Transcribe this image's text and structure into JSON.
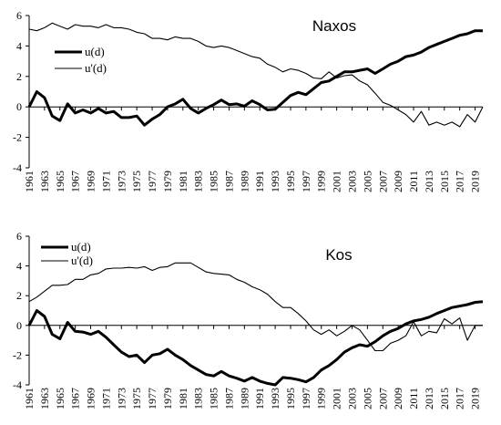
{
  "chart_data": [
    {
      "type": "line",
      "title": "Naxos",
      "xlabel": "",
      "ylabel": "",
      "ylim": [
        -4,
        6
      ],
      "yticks": [
        6,
        4,
        2,
        0,
        -2,
        -4
      ],
      "xlim": [
        1961,
        2020
      ],
      "xticks": [
        1961,
        1963,
        1965,
        1967,
        1969,
        1971,
        1973,
        1975,
        1977,
        1979,
        1981,
        1983,
        1985,
        1987,
        1989,
        1991,
        1993,
        1995,
        1997,
        1999,
        2001,
        2003,
        2005,
        2007,
        2009,
        2011,
        2013,
        2015,
        2017,
        2019
      ],
      "legend_position": "top-left",
      "grid": false,
      "x": [
        1961,
        1962,
        1963,
        1964,
        1965,
        1966,
        1967,
        1968,
        1969,
        1970,
        1971,
        1972,
        1973,
        1974,
        1975,
        1976,
        1977,
        1978,
        1979,
        1980,
        1981,
        1982,
        1983,
        1984,
        1985,
        1986,
        1987,
        1988,
        1989,
        1990,
        1991,
        1992,
        1993,
        1994,
        1995,
        1996,
        1997,
        1998,
        1999,
        2000,
        2001,
        2002,
        2003,
        2004,
        2005,
        2006,
        2007,
        2008,
        2009,
        2010,
        2011,
        2012,
        2013,
        2014,
        2015,
        2016,
        2017,
        2018,
        2019,
        2020
      ],
      "series": [
        {
          "name": "u(d)",
          "style": "thick",
          "values": [
            0.0,
            1.0,
            0.6,
            -0.6,
            -0.9,
            0.2,
            -0.4,
            -0.2,
            -0.4,
            -0.1,
            -0.4,
            -0.3,
            -0.7,
            -0.7,
            -0.6,
            -1.2,
            -0.8,
            -0.5,
            0.0,
            0.2,
            0.5,
            -0.1,
            -0.4,
            -0.1,
            0.15,
            0.45,
            0.15,
            0.2,
            0.05,
            0.4,
            0.15,
            -0.2,
            -0.15,
            0.3,
            0.75,
            0.95,
            0.8,
            1.2,
            1.6,
            1.7,
            2.0,
            2.3,
            2.3,
            2.4,
            2.5,
            2.2,
            2.5,
            2.8,
            3.0,
            3.3,
            3.4,
            3.6,
            3.9,
            4.1,
            4.3,
            4.5,
            4.7,
            4.8,
            5.0,
            5.0
          ]
        },
        {
          "name": "u'(d)",
          "style": "thin",
          "values": [
            5.1,
            5.0,
            5.2,
            5.5,
            5.3,
            5.1,
            5.4,
            5.3,
            5.3,
            5.2,
            5.4,
            5.2,
            5.2,
            5.1,
            4.9,
            4.8,
            4.5,
            4.5,
            4.4,
            4.6,
            4.5,
            4.5,
            4.3,
            4.0,
            3.9,
            4.0,
            3.9,
            3.7,
            3.5,
            3.3,
            3.2,
            2.8,
            2.6,
            2.3,
            2.5,
            2.4,
            2.2,
            1.9,
            1.85,
            2.3,
            1.9,
            2.05,
            2.1,
            1.7,
            1.45,
            0.9,
            0.3,
            0.1,
            -0.2,
            -0.5,
            -1.0,
            -0.3,
            -1.2,
            -1.0,
            -1.2,
            -1.0,
            -1.3,
            -0.5,
            -1.0,
            0.0
          ]
        }
      ]
    },
    {
      "type": "line",
      "title": "Kos",
      "xlabel": "",
      "ylabel": "",
      "ylim": [
        -4,
        6
      ],
      "yticks": [
        6,
        4,
        2,
        0,
        -2,
        -4
      ],
      "xlim": [
        1961,
        2020
      ],
      "xticks": [
        1961,
        1963,
        1965,
        1967,
        1969,
        1971,
        1973,
        1975,
        1977,
        1979,
        1981,
        1983,
        1985,
        1987,
        1989,
        1991,
        1993,
        1995,
        1997,
        1999,
        2001,
        2003,
        2005,
        2007,
        2009,
        2011,
        2013,
        2015,
        2017,
        2019
      ],
      "legend_position": "top-left",
      "grid": false,
      "x": [
        1961,
        1962,
        1963,
        1964,
        1965,
        1966,
        1967,
        1968,
        1969,
        1970,
        1971,
        1972,
        1973,
        1974,
        1975,
        1976,
        1977,
        1978,
        1979,
        1980,
        1981,
        1982,
        1983,
        1984,
        1985,
        1986,
        1987,
        1988,
        1989,
        1990,
        1991,
        1992,
        1993,
        1994,
        1995,
        1996,
        1997,
        1998,
        1999,
        2000,
        2001,
        2002,
        2003,
        2004,
        2005,
        2006,
        2007,
        2008,
        2009,
        2010,
        2011,
        2012,
        2013,
        2014,
        2015,
        2016,
        2017,
        2018,
        2019,
        2020
      ],
      "series": [
        {
          "name": "u(d)",
          "style": "thick",
          "values": [
            0.0,
            1.0,
            0.6,
            -0.6,
            -0.9,
            0.2,
            -0.4,
            -0.45,
            -0.6,
            -0.4,
            -0.8,
            -1.3,
            -1.8,
            -2.1,
            -2.0,
            -2.5,
            -2.0,
            -1.9,
            -1.6,
            -2.0,
            -2.3,
            -2.7,
            -3.0,
            -3.3,
            -3.4,
            -3.1,
            -3.4,
            -3.55,
            -3.75,
            -3.5,
            -3.75,
            -3.9,
            -4.0,
            -3.5,
            -3.55,
            -3.65,
            -3.8,
            -3.5,
            -3.0,
            -2.7,
            -2.3,
            -1.8,
            -1.5,
            -1.3,
            -1.4,
            -1.1,
            -0.7,
            -0.4,
            -0.2,
            0.1,
            0.3,
            0.4,
            0.55,
            0.8,
            1.0,
            1.2,
            1.3,
            1.4,
            1.55,
            1.6
          ]
        },
        {
          "name": "u'(d)",
          "style": "thin",
          "values": [
            1.6,
            1.9,
            2.3,
            2.7,
            2.7,
            2.75,
            3.1,
            3.1,
            3.4,
            3.5,
            3.8,
            3.85,
            3.85,
            3.9,
            3.85,
            3.95,
            3.7,
            3.9,
            3.95,
            4.2,
            4.2,
            4.2,
            3.9,
            3.6,
            3.5,
            3.45,
            3.4,
            3.1,
            2.9,
            2.6,
            2.4,
            2.1,
            1.6,
            1.2,
            1.2,
            0.8,
            0.3,
            -0.3,
            -0.6,
            -0.3,
            -0.7,
            -0.4,
            0.0,
            -0.3,
            -1.0,
            -1.7,
            -1.7,
            -1.2,
            -1.0,
            -0.7,
            0.25,
            -0.7,
            -0.4,
            -0.5,
            0.45,
            0.1,
            0.5,
            -1.0,
            0.0,
            0.0
          ]
        }
      ]
    }
  ]
}
